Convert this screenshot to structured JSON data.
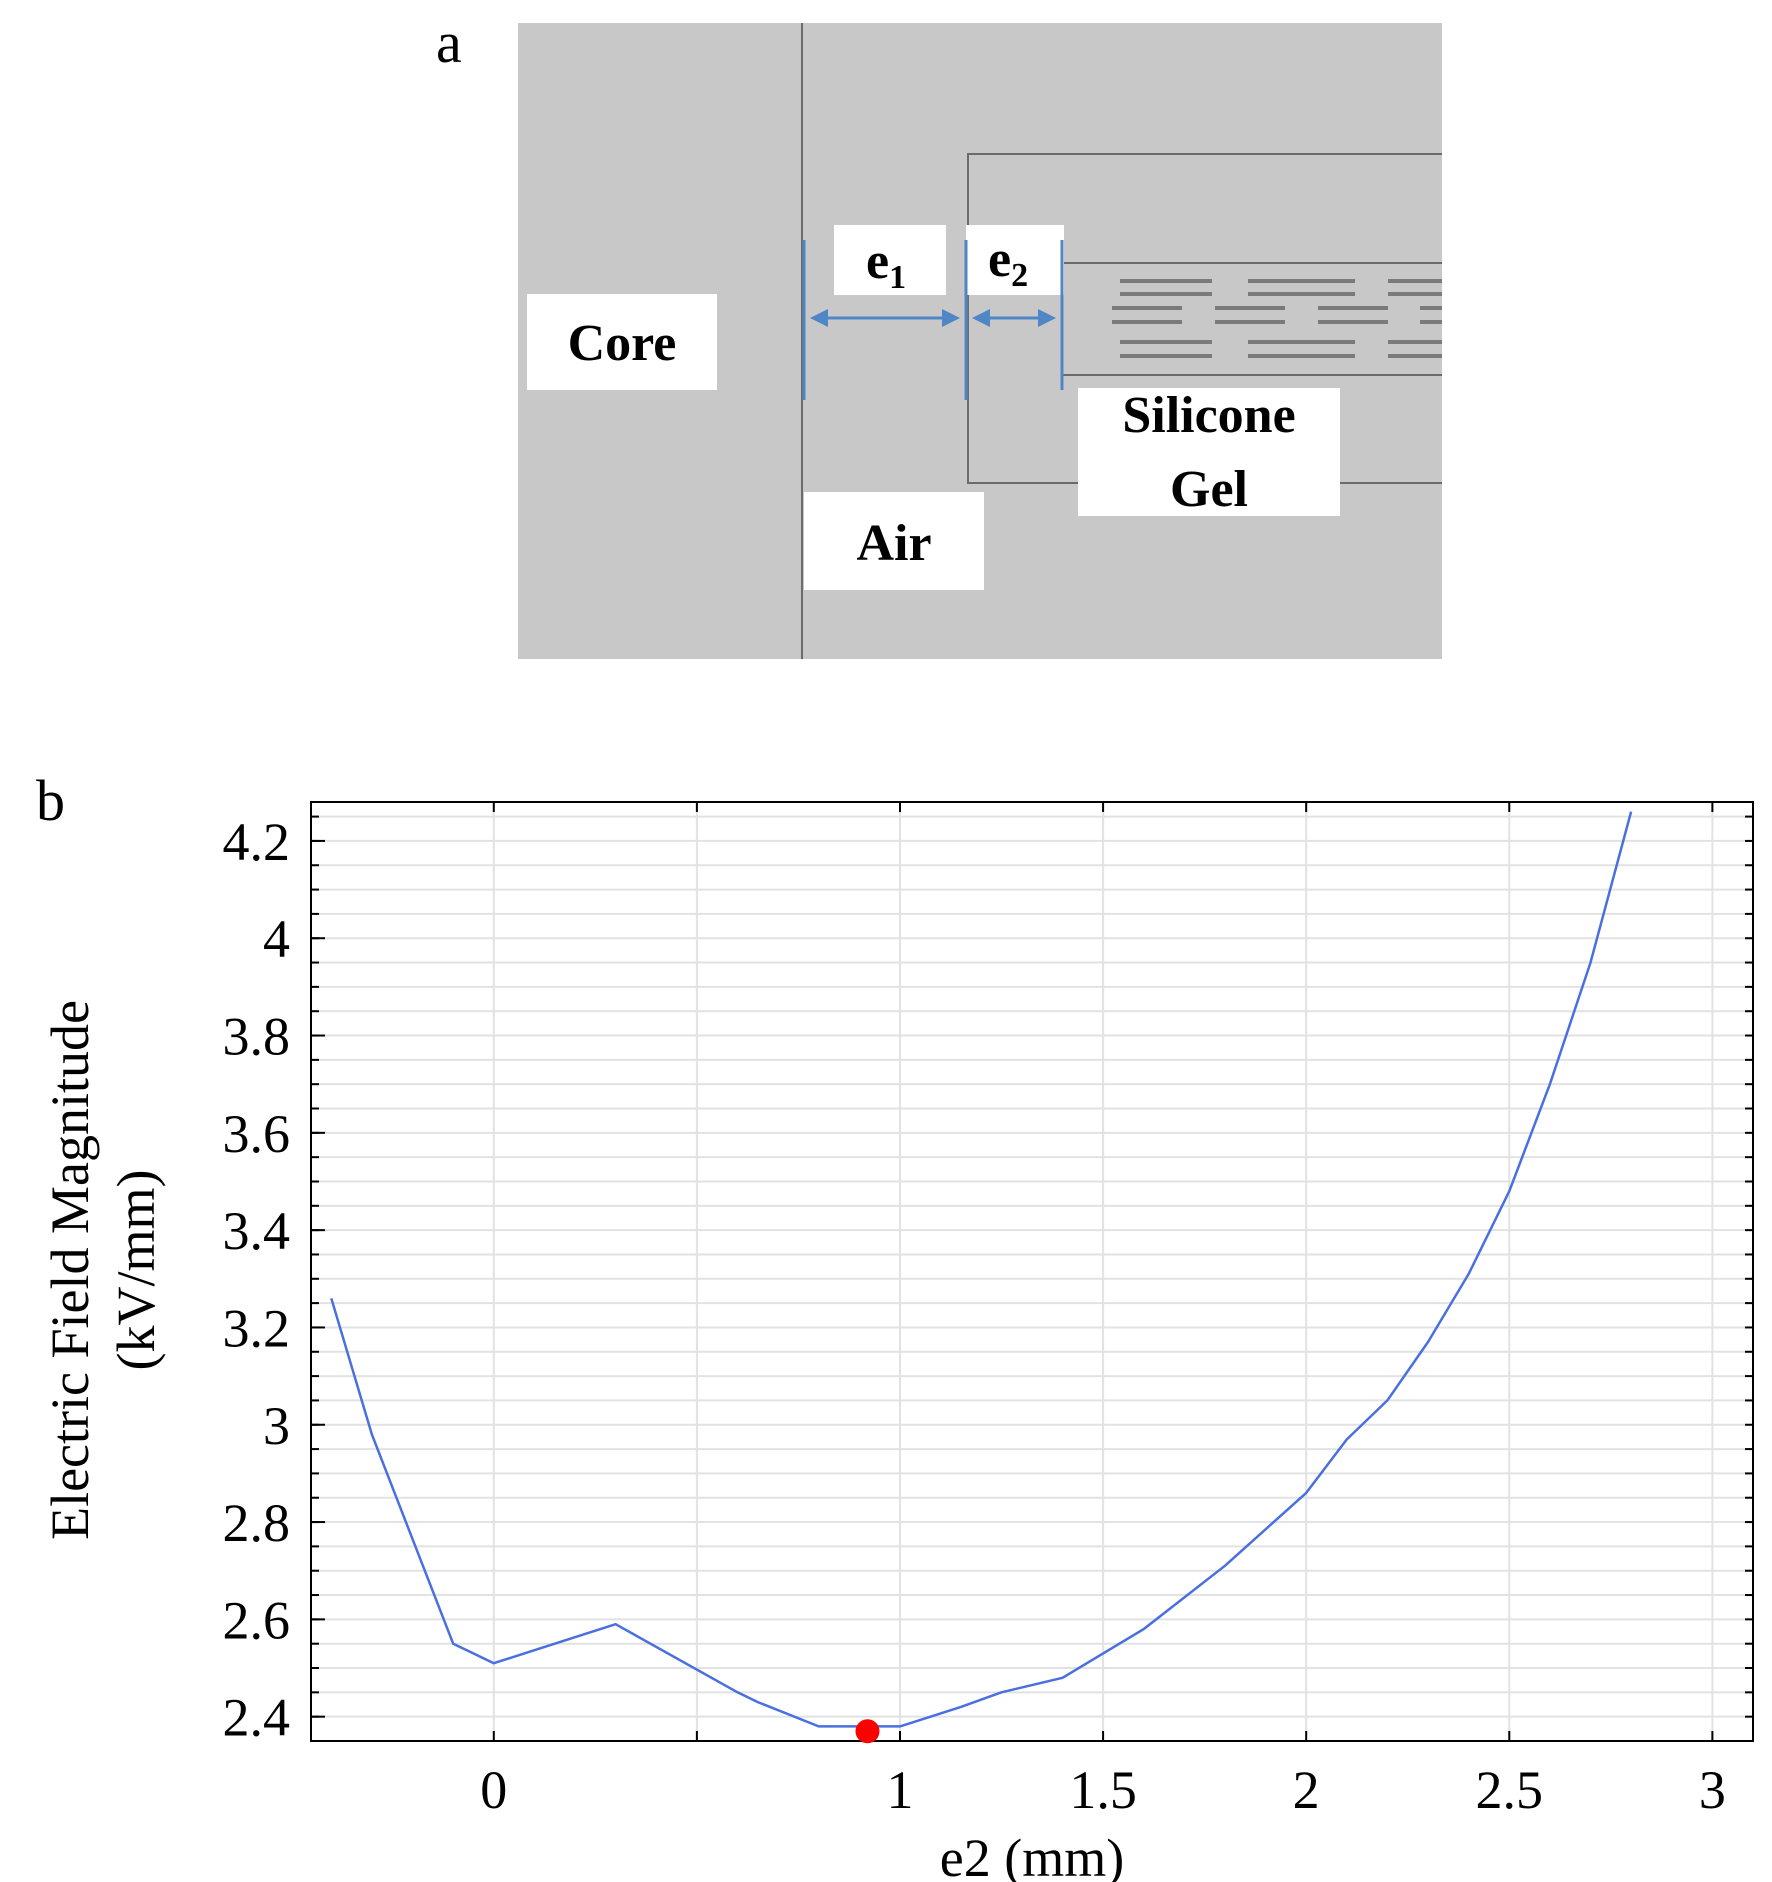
{
  "panel_a": {
    "letter": "a",
    "labels": {
      "core": "Core",
      "air": "Air",
      "silicone_line1": "Silicone",
      "silicone_line2": "Gel",
      "e1_base": "e",
      "e1_sub": "1",
      "e2_base": "e",
      "e2_sub": "2"
    },
    "colors": {
      "background": "#c8c8c8",
      "arrow": "#4f86c6",
      "lines": "#6b6b6b",
      "traces": "#7a7a7a"
    }
  },
  "panel_b": {
    "letter": "b"
  },
  "chart_data": {
    "type": "line",
    "title": "",
    "xlabel": "e2 (mm)",
    "ylabel_line1": "Electric Field Magnitude",
    "ylabel_line2": "(kV/mm)",
    "xlim": [
      -0.45,
      3.1
    ],
    "ylim": [
      2.35,
      4.28
    ],
    "x_tick_values": [
      0,
      1,
      1.5,
      2,
      2.5,
      3
    ],
    "x_tick_labels": [
      "0",
      "1",
      "1.5",
      "2",
      "2.5",
      "3"
    ],
    "y_tick_values": [
      2.4,
      2.6,
      2.8,
      3,
      3.2,
      3.4,
      3.6,
      3.8,
      4,
      4.2
    ],
    "y_tick_labels": [
      "2.4",
      "2.6",
      "2.8",
      "3",
      "3.2",
      "3.4",
      "3.6",
      "3.8",
      "4",
      "4.2"
    ],
    "grid": true,
    "series": [
      {
        "color": "#4a6fe0",
        "x": [
          -0.4,
          -0.3,
          -0.1,
          0.0,
          0.3,
          0.6,
          0.65,
          0.8,
          1.0,
          1.15,
          1.25,
          1.4,
          1.6,
          1.8,
          2.0,
          2.1,
          2.2,
          2.3,
          2.4,
          2.5,
          2.6,
          2.7,
          2.8
        ],
        "y": [
          3.26,
          2.98,
          2.55,
          2.51,
          2.59,
          2.45,
          2.43,
          2.38,
          2.38,
          2.42,
          2.45,
          2.48,
          2.58,
          2.71,
          2.86,
          2.97,
          3.05,
          3.17,
          3.31,
          3.48,
          3.7,
          3.95,
          4.26
        ]
      }
    ],
    "highlight_point": {
      "x": 0.92,
      "y": 2.37,
      "color": "#ff0000"
    }
  }
}
